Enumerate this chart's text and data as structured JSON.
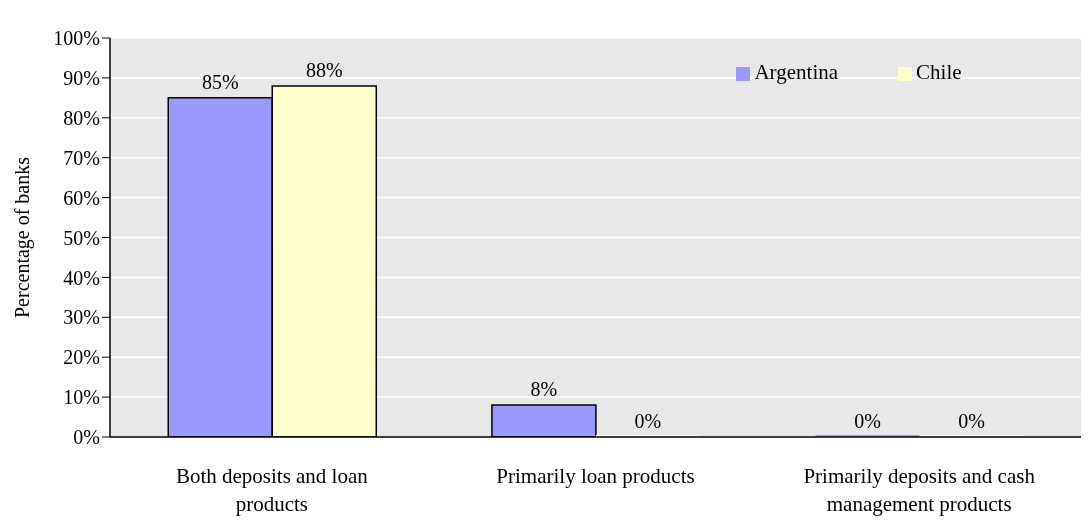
{
  "chart_data": {
    "type": "bar",
    "ylabel": "Percentage of banks",
    "categories": [
      "Both deposits and loan products",
      "Primarily loan products",
      "Primarily deposits and cash management products"
    ],
    "series": [
      {
        "name": "Argentina",
        "color": "#9999ff",
        "values": [
          85,
          8,
          0
        ],
        "value_labels": [
          "85%",
          "8%",
          "0%"
        ]
      },
      {
        "name": "Chile",
        "color": "#ffffcc",
        "values": [
          88,
          0,
          0
        ],
        "value_labels": [
          "88%",
          "0%",
          "0%"
        ]
      }
    ],
    "ylim": [
      0,
      100
    ],
    "yticks": [
      {
        "value": 0,
        "label": "0%"
      },
      {
        "value": 10,
        "label": "10%"
      },
      {
        "value": 20,
        "label": "20%"
      },
      {
        "value": 30,
        "label": "30%"
      },
      {
        "value": 40,
        "label": "40%"
      },
      {
        "value": 50,
        "label": "50%"
      },
      {
        "value": 60,
        "label": "60%"
      },
      {
        "value": 70,
        "label": "70%"
      },
      {
        "value": 80,
        "label": "80%"
      },
      {
        "value": 90,
        "label": "90%"
      },
      {
        "value": 100,
        "label": "100%"
      }
    ],
    "grid": "y",
    "legend": "top right"
  }
}
